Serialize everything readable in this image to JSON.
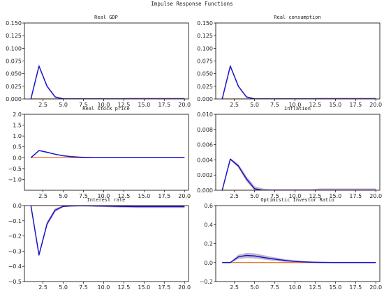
{
  "figure_title": "Impulse Response Functions",
  "colors": {
    "response": "#1515c8",
    "band": "#a6a6bf",
    "zero": "#e07020",
    "pink": "#e6a0c8"
  },
  "chart_data": [
    {
      "type": "line",
      "title": "Real GDP",
      "xlim": [
        0.2,
        20.5
      ],
      "ylim": [
        0,
        0.15
      ],
      "xticks": [
        "2.5",
        "5.0",
        "7.5",
        "10.0",
        "12.5",
        "15.0",
        "17.5",
        "20.0"
      ],
      "yticks": [
        "0.000",
        "0.025",
        "0.050",
        "0.075",
        "0.100",
        "0.125",
        "0.150"
      ],
      "x": [
        1,
        2,
        3,
        4,
        5,
        6,
        7,
        8,
        9,
        10,
        11,
        12,
        13,
        14,
        15,
        16,
        17,
        18,
        19,
        20
      ],
      "series": [
        {
          "values": [
            0,
            0.065,
            0.025,
            0.004,
            0,
            0,
            0,
            0,
            0,
            0,
            0,
            0,
            0,
            0,
            0,
            0,
            0,
            0,
            0,
            0
          ]
        }
      ],
      "band_lower": [
        0,
        0.064,
        0.024,
        0.003,
        -0.001,
        -0.001,
        -0.001,
        -0.001,
        -0.001,
        -0.001,
        -0.001,
        -0.001,
        -0.001,
        -0.001,
        -0.001,
        -0.001,
        -0.001,
        -0.001,
        -0.001,
        -0.001
      ],
      "band_upper": [
        0,
        0.066,
        0.026,
        0.005,
        0.001,
        0.001,
        0.001,
        0.001,
        0.001,
        0.001,
        0.001,
        0.001,
        0.002,
        0.002,
        0.002,
        0.002,
        0.002,
        0.002,
        0.002,
        0.002
      ]
    },
    {
      "type": "line",
      "title": "Real consumption",
      "xlim": [
        0.2,
        20.5
      ],
      "ylim": [
        0,
        0.15
      ],
      "xticks": [
        "2.5",
        "5.0",
        "7.5",
        "10.0",
        "12.5",
        "15.0",
        "17.5",
        "20.0"
      ],
      "yticks": [
        "0.000",
        "0.025",
        "0.050",
        "0.075",
        "0.100",
        "0.125",
        "0.150"
      ],
      "x": [
        1,
        2,
        3,
        4,
        5,
        6,
        7,
        8,
        9,
        10,
        11,
        12,
        13,
        14,
        15,
        16,
        17,
        18,
        19,
        20
      ],
      "series": [
        {
          "values": [
            0,
            0.065,
            0.025,
            0.004,
            0,
            0,
            0,
            0,
            0,
            0,
            0,
            0,
            0,
            0,
            0,
            0,
            0,
            0,
            0,
            0
          ]
        }
      ],
      "band_lower": [
        0,
        0.064,
        0.024,
        0.003,
        -0.001,
        -0.001,
        -0.001,
        -0.001,
        -0.001,
        -0.001,
        -0.001,
        -0.001,
        -0.001,
        -0.001,
        -0.001,
        -0.001,
        -0.001,
        -0.001,
        -0.001,
        -0.001
      ],
      "band_upper": [
        0,
        0.066,
        0.026,
        0.005,
        0.001,
        0.001,
        0.001,
        0.001,
        0.001,
        0.001,
        0.001,
        0.001,
        0.002,
        0.002,
        0.002,
        0.002,
        0.002,
        0.002,
        0.002,
        0.002
      ]
    },
    {
      "type": "line",
      "title": "Real stock price",
      "xlim": [
        0.2,
        20.5
      ],
      "ylim": [
        -1.5,
        2.0
      ],
      "xticks": [
        "2.5",
        "5.0",
        "7.5",
        "10.0",
        "12.5",
        "15.0",
        "17.5",
        "20.0"
      ],
      "yticks": [
        "−1.0",
        "−0.5",
        "0.0",
        "0.5",
        "1.0",
        "1.5",
        "2.0"
      ],
      "x": [
        1,
        2,
        3,
        4,
        5,
        6,
        7,
        8,
        9,
        10,
        11,
        12,
        13,
        14,
        15,
        16,
        17,
        18,
        19,
        20
      ],
      "series": [
        {
          "values": [
            0,
            0.33,
            0.25,
            0.16,
            0.09,
            0.05,
            0.025,
            0.01,
            0,
            0,
            0,
            0,
            0,
            0,
            0,
            0,
            0,
            0,
            0,
            0
          ]
        }
      ],
      "band_lower": [
        0,
        0.32,
        0.24,
        0.15,
        0.08,
        0.04,
        0.015,
        0,
        -0.01,
        -0.01,
        -0.01,
        -0.01,
        -0.01,
        -0.01,
        -0.01,
        -0.01,
        -0.01,
        -0.01,
        -0.01,
        -0.01
      ],
      "band_upper": [
        0,
        0.34,
        0.26,
        0.17,
        0.1,
        0.06,
        0.035,
        0.02,
        0.01,
        0.01,
        0.01,
        0.01,
        0.01,
        0.01,
        0.01,
        0.01,
        0.01,
        0.01,
        0.01,
        0.01
      ]
    },
    {
      "type": "line",
      "title": "Inflation",
      "xlim": [
        0.2,
        20.5
      ],
      "ylim": [
        0,
        0.01
      ],
      "xticks": [
        "2.5",
        "5.0",
        "7.5",
        "10.0",
        "12.5",
        "15.0",
        "17.5",
        "20.0"
      ],
      "yticks": [
        "0.000",
        "0.002",
        "0.004",
        "0.006",
        "0.008",
        "0.010"
      ],
      "x": [
        1,
        2,
        3,
        4,
        5,
        6,
        7,
        8,
        9,
        10,
        11,
        12,
        13,
        14,
        15,
        16,
        17,
        18,
        19,
        20
      ],
      "series": [
        {
          "values": [
            0,
            0.0041,
            0.0032,
            0.0015,
            0.0002,
            0,
            0,
            0,
            0,
            0,
            0,
            0,
            0,
            0,
            0,
            0,
            0,
            0,
            0,
            0
          ]
        }
      ],
      "band_lower": [
        0,
        0.004,
        0.003,
        0.0012,
        0,
        -0.0001,
        -0.0001,
        -0.0001,
        -0.0001,
        -0.0001,
        -0.0001,
        -0.0001,
        -0.0001,
        -0.0001,
        -0.0001,
        -0.0001,
        -0.0001,
        -0.0001,
        -0.0001,
        -0.0001
      ],
      "band_upper": [
        0,
        0.0042,
        0.0034,
        0.0018,
        0.0005,
        0.0002,
        0.0001,
        0.0001,
        0.0001,
        0.0001,
        0.0001,
        0.0001,
        0.0002,
        0.0002,
        0.0002,
        0.0002,
        0.0002,
        0.0002,
        0.0002,
        0.0002
      ]
    },
    {
      "type": "line",
      "title": "Interest rate",
      "xlim": [
        0.2,
        20.5
      ],
      "ylim": [
        -0.5,
        0.0
      ],
      "xticks": [
        "2.5",
        "5.0",
        "7.5",
        "10.0",
        "12.5",
        "15.0",
        "17.5",
        "20.0"
      ],
      "yticks": [
        "−0.5",
        "−0.4",
        "−0.3",
        "−0.2",
        "−0.1",
        "0.0"
      ],
      "x": [
        1,
        2,
        3,
        4,
        5,
        6,
        7,
        8,
        9,
        10,
        11,
        12,
        13,
        14,
        15,
        16,
        17,
        18,
        19,
        20
      ],
      "series": [
        {
          "values": [
            0,
            -0.325,
            -0.12,
            -0.03,
            -0.005,
            -0.002,
            -0.001,
            -0.001,
            -0.002,
            -0.003,
            -0.004,
            -0.005,
            -0.006,
            -0.007,
            -0.007,
            -0.007,
            -0.007,
            -0.007,
            -0.007,
            -0.007
          ]
        }
      ],
      "band_lower": [
        0,
        -0.33,
        -0.13,
        -0.04,
        -0.008,
        -0.005,
        -0.004,
        -0.005,
        -0.006,
        -0.008,
        -0.01,
        -0.012,
        -0.013,
        -0.014,
        -0.014,
        -0.014,
        -0.014,
        -0.014,
        -0.014,
        -0.014
      ],
      "band_upper": [
        0,
        -0.32,
        -0.11,
        -0.02,
        -0.002,
        0,
        0,
        0,
        0,
        0,
        0,
        0,
        0,
        0,
        0,
        0,
        0,
        0,
        0,
        0
      ]
    },
    {
      "type": "line",
      "title": "Optimistic Investor Ratio",
      "xlim": [
        0.2,
        20.5
      ],
      "ylim": [
        -0.2,
        0.6
      ],
      "xticks": [
        "2.5",
        "5.0",
        "7.5",
        "10.0",
        "12.5",
        "15.0",
        "17.5",
        "20.0"
      ],
      "yticks": [
        "−0.2",
        "0.0",
        "0.2",
        "0.4",
        "0.6"
      ],
      "x": [
        1,
        2,
        3,
        4,
        5,
        6,
        7,
        8,
        9,
        10,
        11,
        12,
        13,
        14,
        15,
        16,
        17,
        18,
        19,
        20
      ],
      "series": [
        {
          "values": [
            0,
            0,
            0.06,
            0.075,
            0.07,
            0.055,
            0.042,
            0.03,
            0.02,
            0.012,
            0.007,
            0.004,
            0.002,
            0.001,
            0,
            0,
            0,
            0,
            0,
            0
          ]
        }
      ],
      "band_lower": [
        0,
        0,
        0.04,
        0.05,
        0.045,
        0.035,
        0.025,
        0.015,
        0.008,
        0.004,
        0.001,
        0,
        -0.001,
        -0.001,
        -0.002,
        -0.002,
        -0.002,
        -0.002,
        -0.002,
        -0.002
      ],
      "band_upper": [
        0,
        0,
        0.08,
        0.1,
        0.095,
        0.078,
        0.06,
        0.045,
        0.032,
        0.022,
        0.014,
        0.009,
        0.006,
        0.004,
        0.003,
        0.003,
        0.003,
        0.003,
        0.003,
        0.003
      ]
    }
  ]
}
